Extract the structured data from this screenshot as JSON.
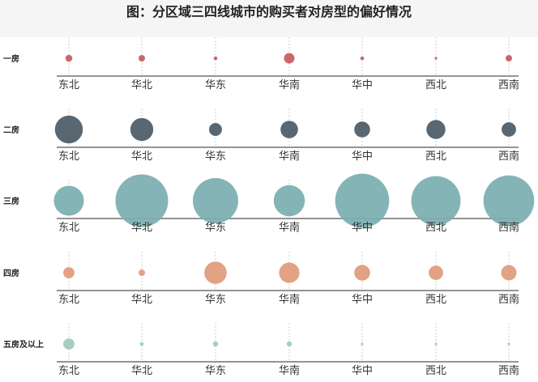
{
  "chart_data": {
    "type": "bubble",
    "title": "图：分区域三四线城市的购买者对房型的偏好情况",
    "categories": [
      "东北",
      "华北",
      "华东",
      "华南",
      "华中",
      "西北",
      "西南"
    ],
    "series": [
      {
        "name": "一房",
        "color": "#c85a5a",
        "values": [
          3.5,
          3,
          1,
          8,
          1,
          0.5,
          3
        ]
      },
      {
        "name": "二房",
        "color": "#4a5a66",
        "values": [
          56,
          38,
          12,
          22,
          18,
          26,
          15
        ]
      },
      {
        "name": "三房",
        "color": "#7aaeb0",
        "values": [
          65,
          200,
          148,
          70,
          210,
          175,
          185
        ]
      },
      {
        "name": "四房",
        "color": "#df9a7a",
        "values": [
          9,
          3,
          36,
          30,
          18,
          15,
          17
        ]
      },
      {
        "name": "五房及以上",
        "color": "#9ccbbc",
        "values": [
          9,
          1,
          2,
          2,
          0.5,
          0.5,
          0.5
        ]
      }
    ]
  }
}
